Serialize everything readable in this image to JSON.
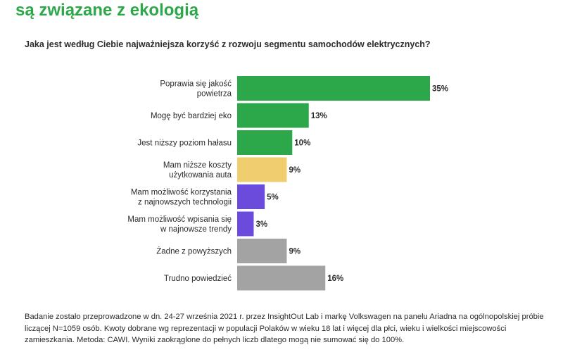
{
  "header": {
    "title": "są związane z ekologią",
    "question": "Jaka jest według Ciebie najważniejsza korzyść z rozwoju segmentu samochodów elektrycznych?"
  },
  "chart_data": {
    "type": "bar",
    "orientation": "horizontal",
    "categories": [
      "Poprawia się jakość\npowietrza",
      "Mogę być bardziej eko",
      "Jest niższy poziom hałasu",
      "Mam niższe koszty\nużytkowania auta",
      "Mam możliwość korzystania\nz najnowszych technologii",
      "Mam możliwość wpisania się\nw najnowsze trendy",
      "Żadne z powyższych",
      "Trudno powiedzieć"
    ],
    "values": [
      35,
      13,
      10,
      9,
      5,
      3,
      9,
      16
    ],
    "value_labels": [
      "35%",
      "13%",
      "10%",
      "9%",
      "5%",
      "3%",
      "9%",
      "16%"
    ],
    "colors": [
      "#2ca84a",
      "#2ca84a",
      "#2ca84a",
      "#f0cd6e",
      "#6a4bdc",
      "#6a4bdc",
      "#a3a3a3",
      "#a3a3a3"
    ],
    "xlim": [
      0,
      35
    ],
    "grid": false,
    "legend": "none"
  },
  "footnote": "Badanie zostało przeprowadzone w dn. 24-27 września 2021 r. przez InsightOut Lab i markę Volkswagen na panelu Ariadna na ogólnopolskiej próbie liczącej N=1059 osób. Kwoty dobrane wg reprezentacji w populacji Polaków w wieku 18 lat i więcej dla płci, wieku i wielkości miejscowości zamieszkania. Metoda: CAWI. Wyniki zaokrąglone do pełnych liczb dlatego mogą nie sumować się do 100%."
}
